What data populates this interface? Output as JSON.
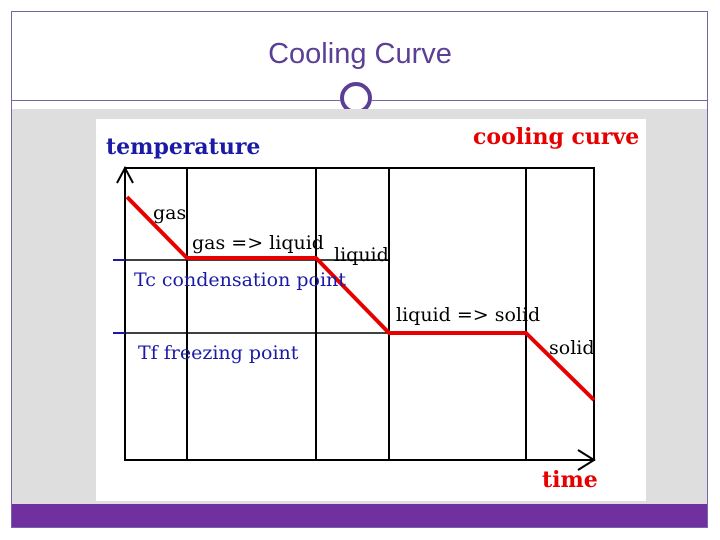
{
  "slide": {
    "title": "Cooling Curve"
  },
  "diagram": {
    "y_axis_label": "temperature",
    "x_axis_label": "time",
    "heading": "cooling curve",
    "phase_labels": {
      "gas": "gas",
      "gas_to_liquid": "gas => liquid",
      "liquid": "liquid",
      "liquid_to_solid": "liquid => solid",
      "solid": "solid"
    },
    "markers": {
      "condensation": "Tc condensation point",
      "freezing": "Tf freezing point"
    }
  },
  "colors": {
    "accent": "#7030a0",
    "title_text": "#5b3f94",
    "curve": "#e60000",
    "axis_label": "#1a1aa6"
  }
}
